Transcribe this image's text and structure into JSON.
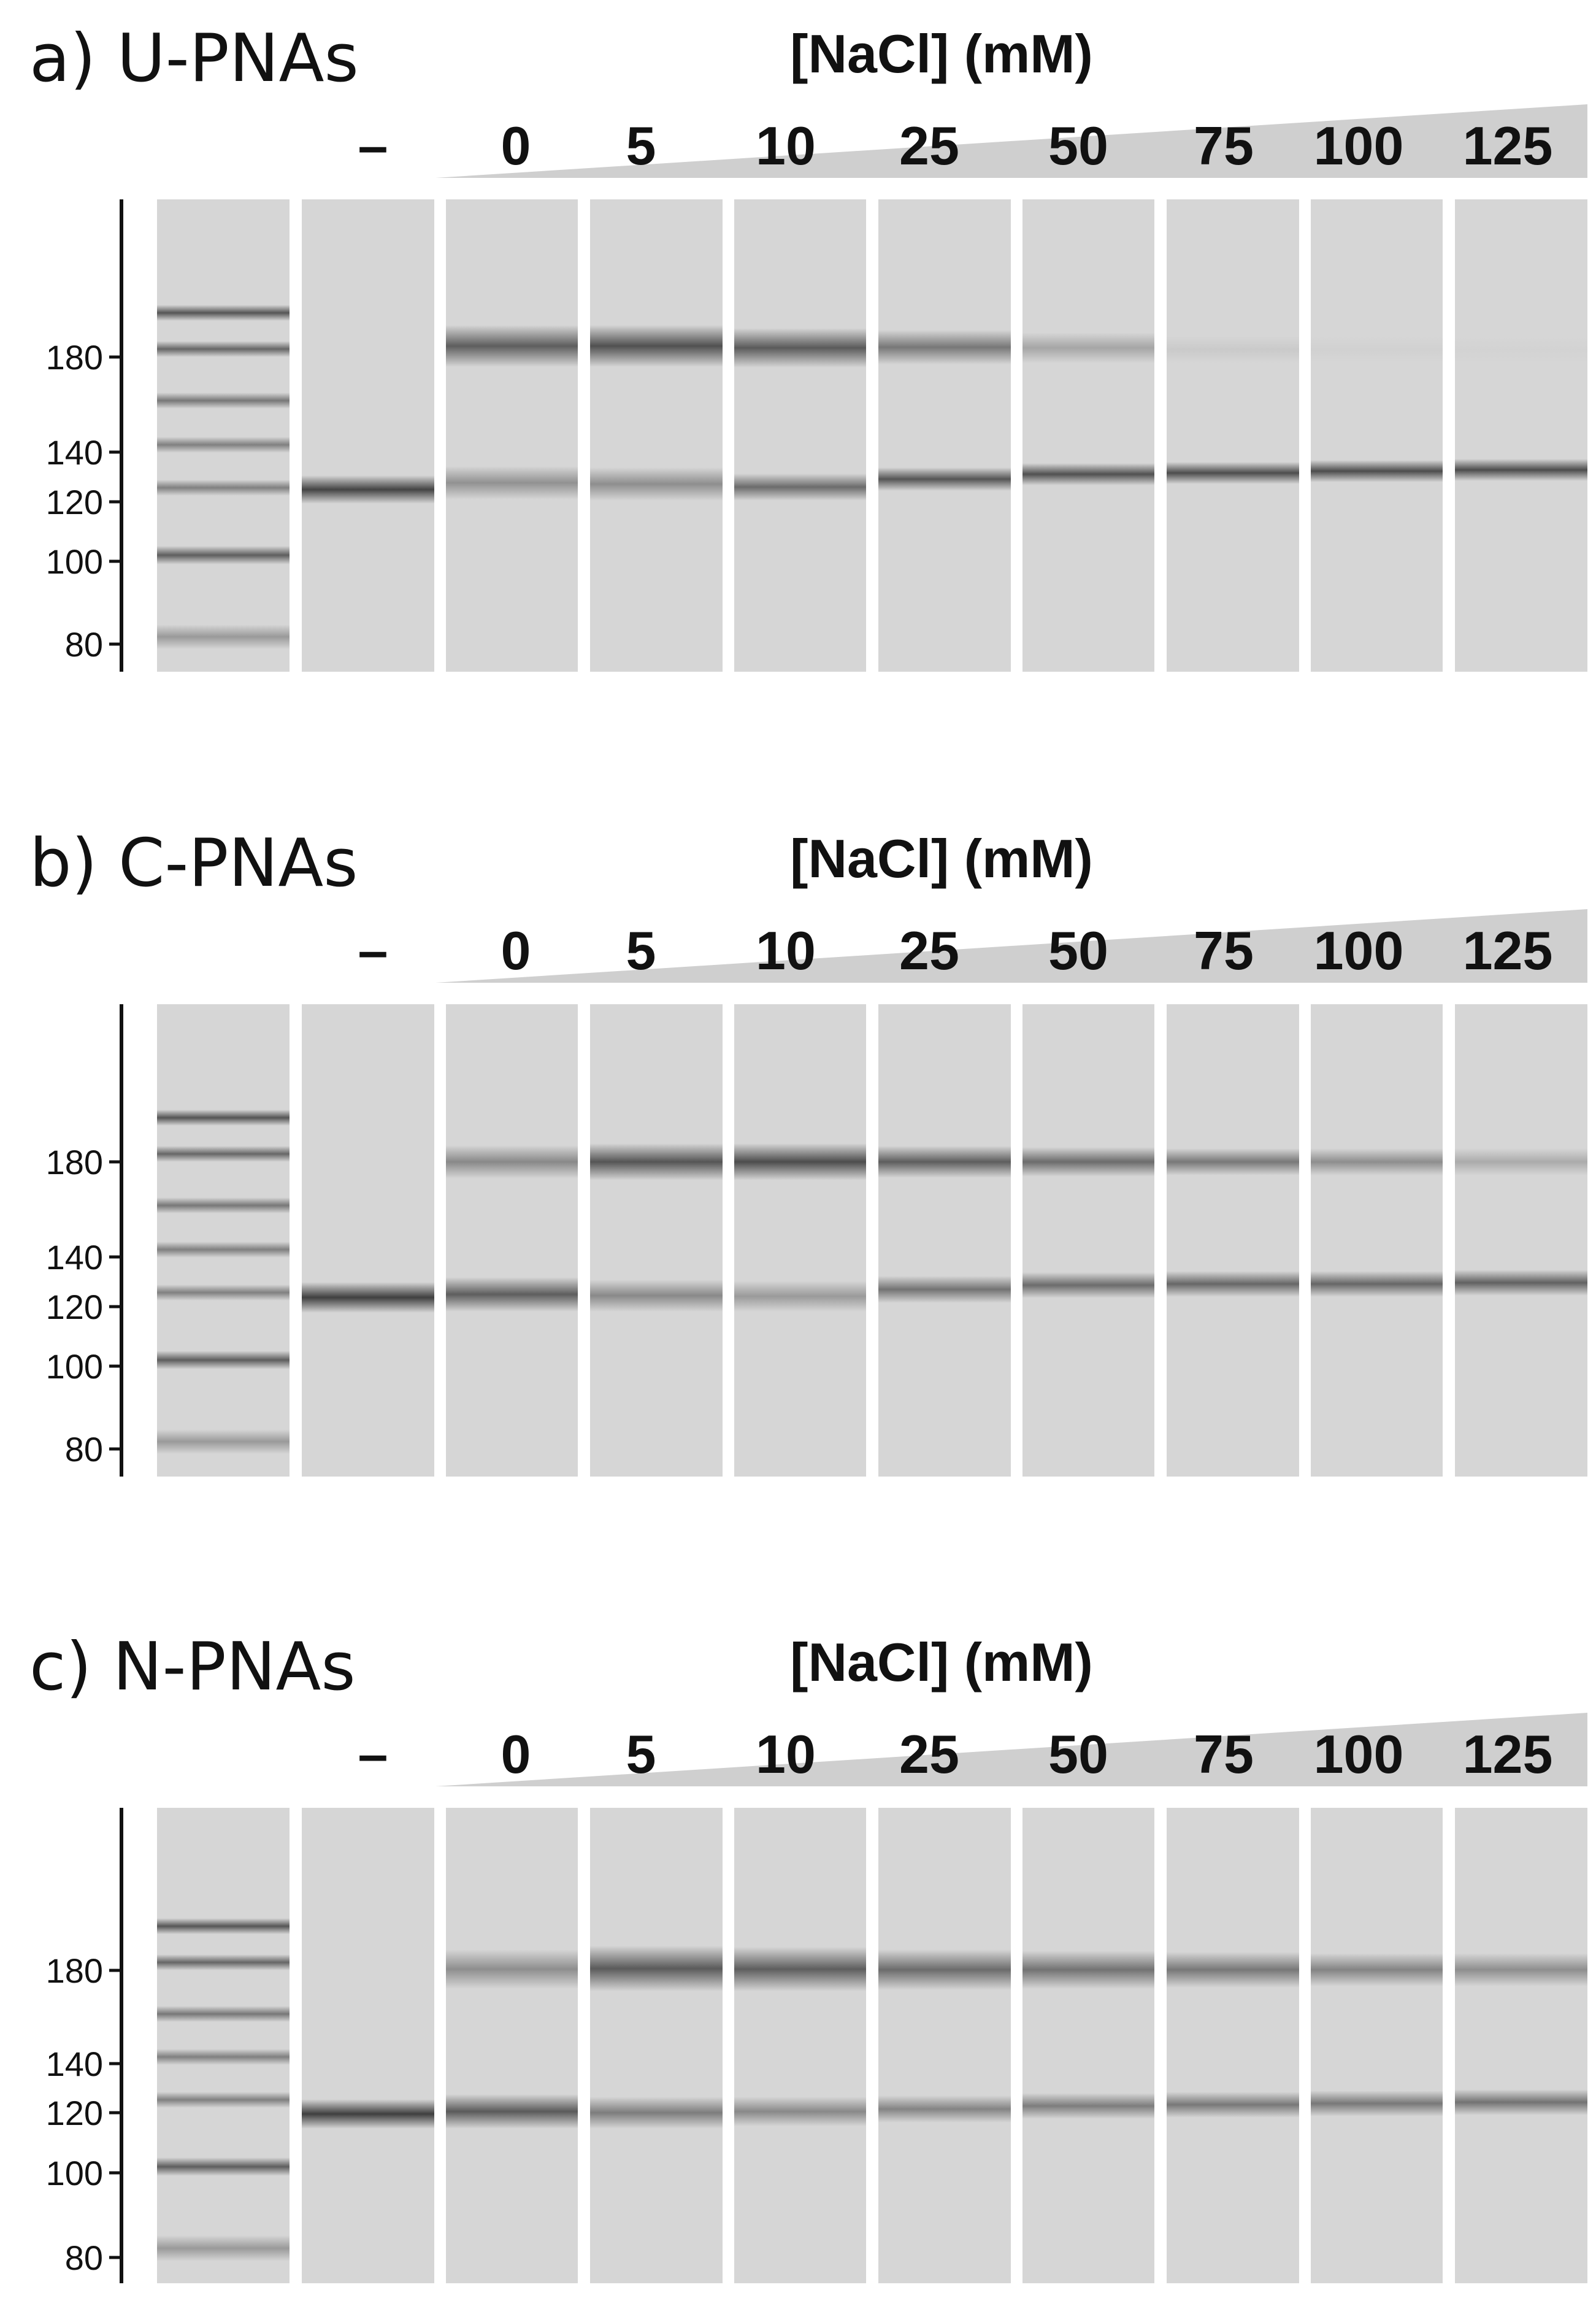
{
  "figure": {
    "column_header": "[NaCl] (mM)",
    "control_label": "–",
    "concentrations": [
      "0",
      "5",
      "10",
      "25",
      "50",
      "75",
      "100",
      "125"
    ],
    "ladder_ticks": [
      "180",
      "140",
      "120",
      "100",
      "80"
    ],
    "colors": {
      "lane": "#d6d6d6",
      "band": "#2a2a2a",
      "wedge": "#cfcfcf",
      "axis": "#111111"
    }
  },
  "panels": [
    {
      "label": "a) U-PNAs",
      "control_band": 0.85,
      "upper_band": [
        0.7,
        0.78,
        0.72,
        0.55,
        0.28,
        0.07,
        0.03,
        0.02
      ],
      "lower_band": [
        0.4,
        0.42,
        0.62,
        0.75,
        0.78,
        0.8,
        0.8,
        0.8
      ]
    },
    {
      "label": "b) C-PNAs",
      "control_band": 0.88,
      "upper_band": [
        0.45,
        0.75,
        0.8,
        0.7,
        0.62,
        0.55,
        0.42,
        0.25
      ],
      "lower_band": [
        0.7,
        0.45,
        0.35,
        0.58,
        0.62,
        0.65,
        0.65,
        0.68
      ]
    },
    {
      "label": "c) N-PNAs",
      "control_band": 0.88,
      "upper_band": [
        0.42,
        0.72,
        0.7,
        0.62,
        0.58,
        0.55,
        0.48,
        0.42
      ],
      "lower_band": [
        0.72,
        0.52,
        0.45,
        0.48,
        0.52,
        0.55,
        0.55,
        0.58
      ]
    }
  ]
}
